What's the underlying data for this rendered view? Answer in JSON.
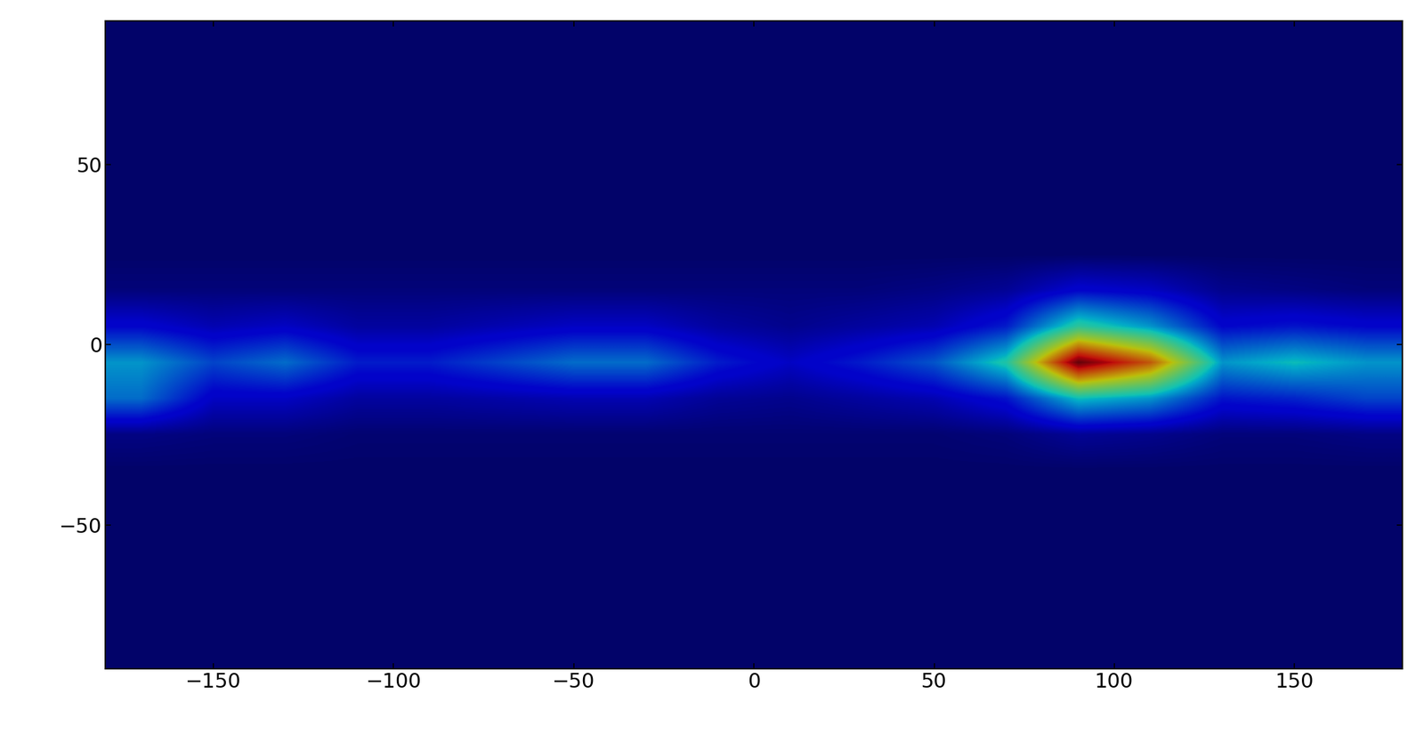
{
  "chart_data": {
    "type": "heatmap",
    "x": [
      -170,
      -150,
      -130,
      -110,
      -90,
      -70,
      -50,
      -30,
      -10,
      10,
      30,
      50,
      70,
      90,
      110,
      130,
      150,
      170
    ],
    "y": [
      85,
      75,
      65,
      55,
      45,
      35,
      25,
      15,
      5,
      -5,
      -15,
      -25,
      -35,
      -45,
      -55,
      -65,
      -75,
      -85
    ],
    "cells": [
      [
        0,
        0,
        0,
        0,
        0,
        0,
        0,
        0,
        0,
        0,
        0,
        0,
        0,
        0,
        0,
        0,
        0,
        0
      ],
      [
        0,
        0,
        0,
        0,
        0,
        0,
        0,
        0,
        0,
        0,
        0,
        0,
        0,
        0,
        0,
        0,
        0,
        0
      ],
      [
        0,
        0,
        0,
        0,
        0,
        0,
        0,
        0,
        0,
        0,
        0,
        0,
        0,
        0,
        0,
        0,
        0,
        0
      ],
      [
        0,
        0,
        0,
        0,
        0,
        0,
        0,
        0,
        0,
        0,
        0,
        0,
        0,
        0,
        0,
        0,
        0,
        0
      ],
      [
        0,
        0,
        0,
        0,
        0,
        0,
        0,
        0,
        0,
        0,
        0,
        0,
        0,
        0,
        0,
        0,
        0,
        0
      ],
      [
        0,
        0,
        0,
        0,
        0,
        0,
        0,
        0,
        0,
        0,
        0,
        0,
        0,
        0,
        0,
        0,
        0,
        0
      ],
      [
        0,
        0,
        0,
        0,
        0,
        0,
        0,
        0,
        0,
        0,
        0,
        0,
        0,
        0,
        0,
        0,
        0,
        0
      ],
      [
        0.02,
        0.02,
        0.02,
        0.02,
        0.02,
        0.02,
        0.02,
        0.02,
        0.02,
        0.02,
        0.02,
        0.03,
        0.05,
        0.12,
        0.1,
        0.04,
        0.03,
        0.02
      ],
      [
        0.12,
        0.08,
        0.1,
        0.06,
        0.06,
        0.08,
        0.1,
        0.1,
        0.06,
        0.04,
        0.06,
        0.08,
        0.15,
        0.4,
        0.3,
        0.12,
        0.14,
        0.12
      ],
      [
        0.3,
        0.2,
        0.25,
        0.15,
        0.15,
        0.2,
        0.25,
        0.25,
        0.15,
        0.1,
        0.15,
        0.22,
        0.38,
        0.95,
        0.75,
        0.3,
        0.35,
        0.3
      ],
      [
        0.25,
        0.1,
        0.1,
        0.06,
        0.06,
        0.07,
        0.08,
        0.08,
        0.05,
        0.04,
        0.06,
        0.08,
        0.14,
        0.35,
        0.3,
        0.14,
        0.16,
        0.2
      ],
      [
        0.03,
        0.02,
        0.02,
        0.01,
        0.01,
        0.01,
        0.01,
        0.01,
        0.01,
        0.01,
        0.01,
        0.01,
        0.02,
        0.05,
        0.04,
        0.02,
        0.02,
        0.03
      ],
      [
        0,
        0,
        0,
        0,
        0,
        0,
        0,
        0,
        0,
        0,
        0,
        0,
        0,
        0,
        0,
        0,
        0,
        0
      ],
      [
        0,
        0,
        0,
        0,
        0,
        0,
        0,
        0,
        0,
        0,
        0,
        0,
        0,
        0,
        0,
        0,
        0,
        0
      ],
      [
        0,
        0,
        0,
        0,
        0,
        0,
        0,
        0,
        0,
        0,
        0,
        0,
        0,
        0,
        0,
        0,
        0,
        0
      ],
      [
        0,
        0,
        0,
        0,
        0,
        0,
        0,
        0,
        0,
        0,
        0,
        0,
        0,
        0,
        0,
        0,
        0,
        0
      ],
      [
        0,
        0,
        0,
        0,
        0,
        0,
        0,
        0,
        0,
        0,
        0,
        0,
        0,
        0,
        0,
        0,
        0,
        0
      ],
      [
        0,
        0,
        0,
        0,
        0,
        0,
        0,
        0,
        0,
        0,
        0,
        0,
        0,
        0,
        0,
        0,
        0,
        0
      ]
    ],
    "xlim": [
      -180,
      180
    ],
    "ylim": [
      -90,
      90
    ],
    "xticks": [
      {
        "value": -150,
        "label": "−150"
      },
      {
        "value": -100,
        "label": "−100"
      },
      {
        "value": -50,
        "label": "−50"
      },
      0,
      50,
      100,
      150
    ],
    "yticks": [
      {
        "value": -50,
        "label": "−50"
      },
      0,
      50
    ]
  }
}
